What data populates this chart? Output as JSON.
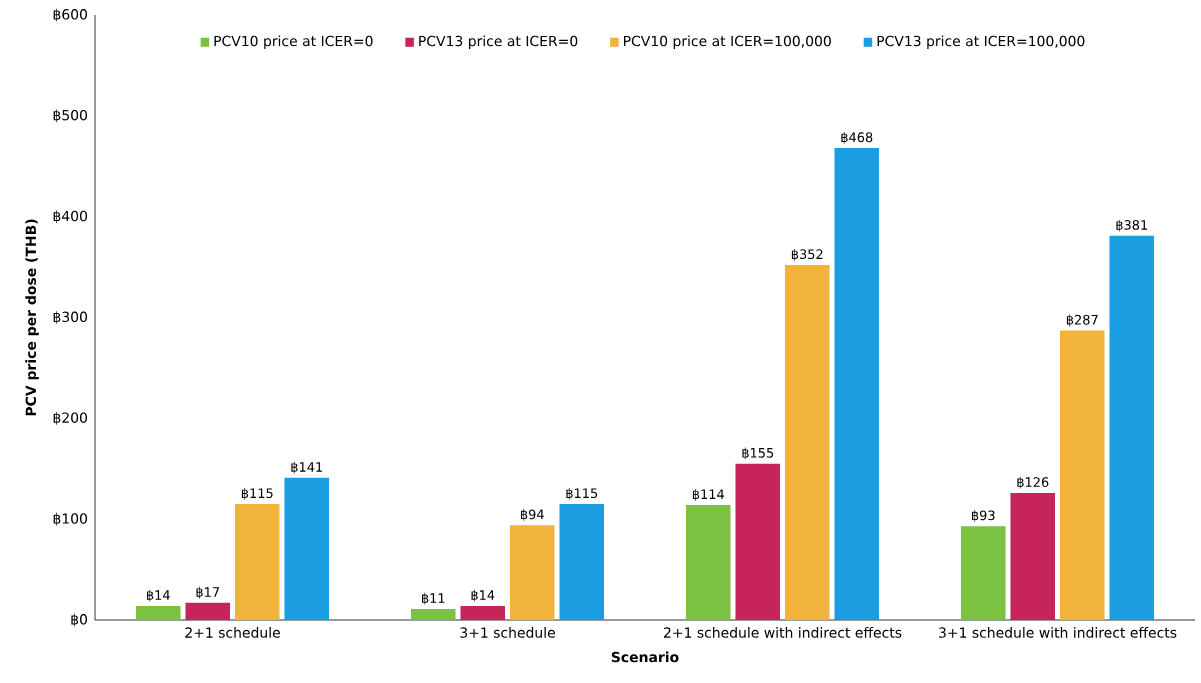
{
  "chart_data": {
    "type": "bar",
    "xlabel": "Scenario",
    "ylabel": "PCV price per dose (THB)",
    "categories": [
      "2+1 schedule",
      "3+1 schedule",
      "2+1 schedule with indirect effects",
      "3+1 schedule with indirect effects"
    ],
    "series": [
      {
        "name": "PCV10 price at ICER=0",
        "color": "#7cc242",
        "values": [
          14,
          11,
          114,
          93
        ],
        "value_labels": [
          "฿14",
          "฿11",
          "฿114",
          "฿93"
        ]
      },
      {
        "name": "PCV13 price at ICER=0",
        "color": "#c7245a",
        "values": [
          17,
          14,
          155,
          126
        ],
        "value_labels": [
          "฿17",
          "฿14",
          "฿155",
          "฿126"
        ]
      },
      {
        "name": "PCV10 price at ICER=100,000",
        "color": "#f2b33d",
        "values": [
          115,
          94,
          352,
          287
        ],
        "value_labels": [
          "฿115",
          "฿94",
          "฿352",
          "฿287"
        ]
      },
      {
        "name": "PCV13 price at ICER=100,000",
        "color": "#1b9de2",
        "values": [
          141,
          115,
          468,
          381
        ],
        "value_labels": [
          "฿141",
          "฿115",
          "฿468",
          "฿381"
        ]
      }
    ],
    "ylim": [
      0,
      600
    ],
    "yticks": [
      {
        "value": 0,
        "label": "฿0"
      },
      {
        "value": 100,
        "label": "฿100"
      },
      {
        "value": 200,
        "label": "฿200"
      },
      {
        "value": 300,
        "label": "฿300"
      },
      {
        "value": 400,
        "label": "฿400"
      },
      {
        "value": 500,
        "label": "฿500"
      },
      {
        "value": 600,
        "label": "฿600"
      }
    ],
    "legend": "top",
    "grid": false
  }
}
